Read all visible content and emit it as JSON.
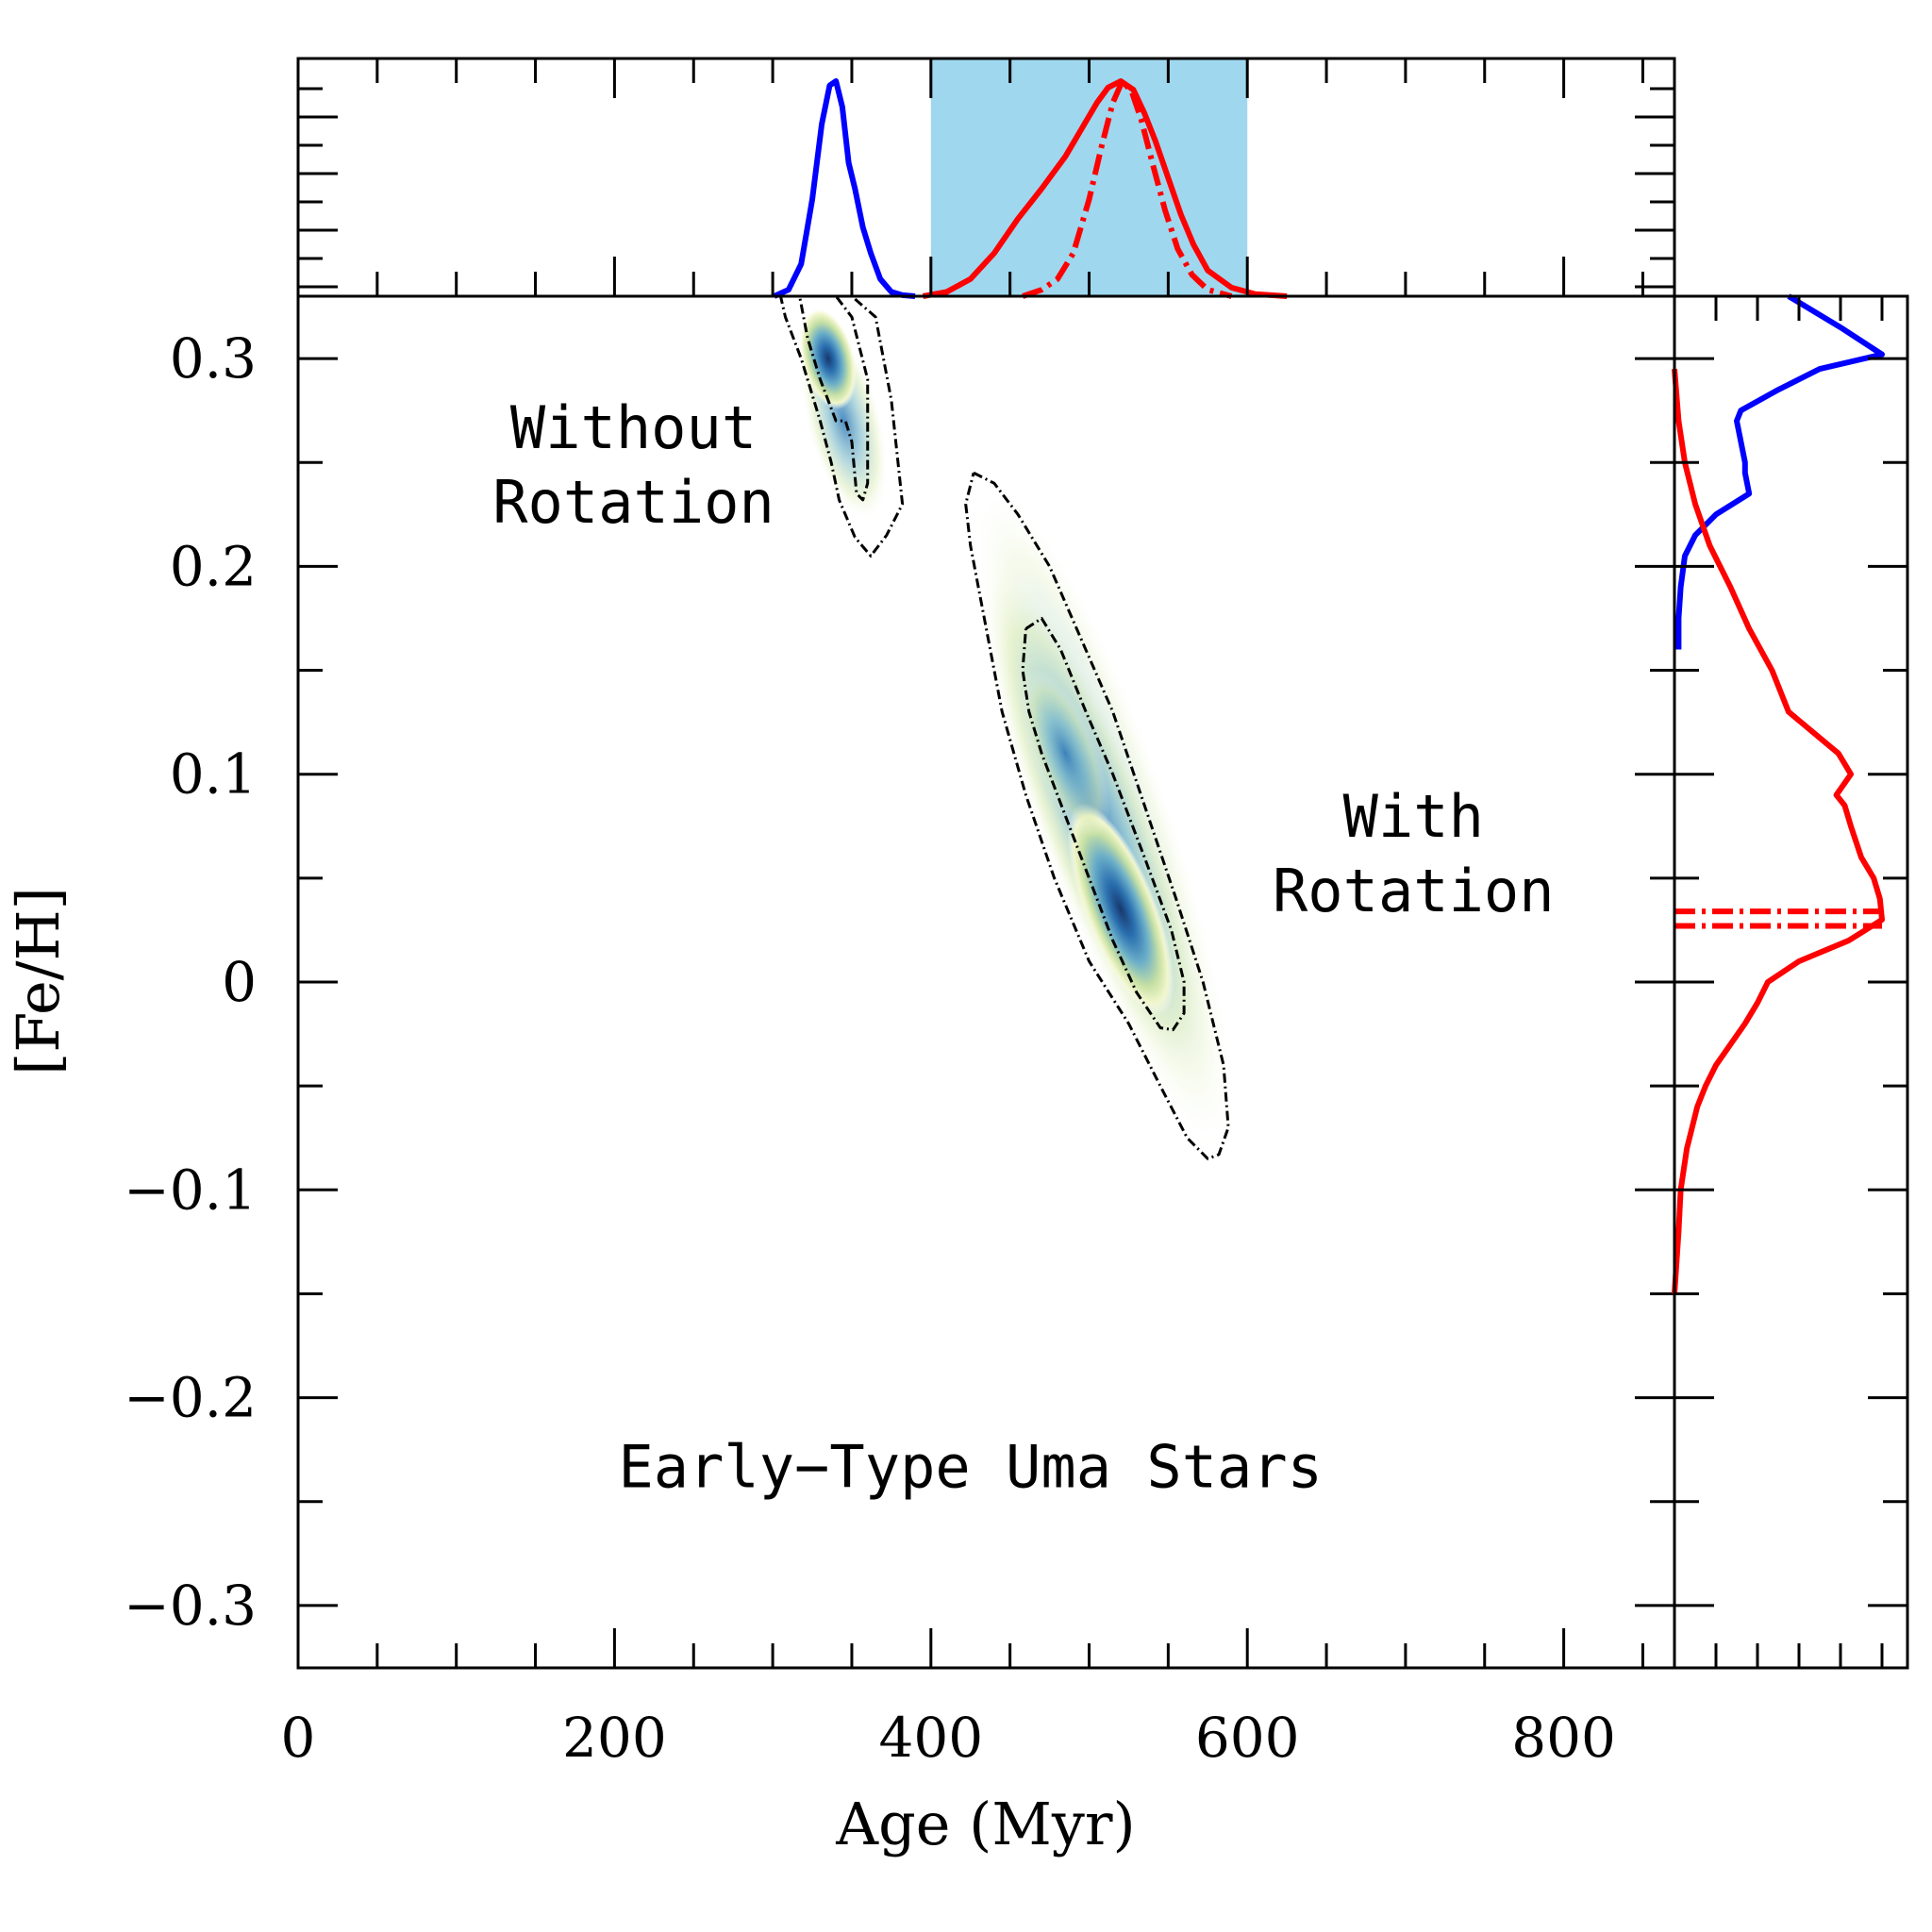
{
  "chart_data": {
    "type": "heatmap",
    "title": "",
    "xlabel": "Age (Myr)",
    "ylabel": "[Fe/H]",
    "xlim": [
      0,
      870
    ],
    "ylim": [
      -0.33,
      0.33
    ],
    "x_ticks": [
      0,
      200,
      400,
      600,
      800
    ],
    "x_tick_labels": [
      "0",
      "200",
      "400",
      "600",
      "800"
    ],
    "y_ticks": [
      0.3,
      0.2,
      0.1,
      0,
      -0.1,
      -0.2,
      -0.3
    ],
    "y_tick_labels": [
      "0.3",
      "0.2",
      "0.1",
      "0",
      "−0.1",
      "−0.2",
      "−0.3"
    ],
    "grid": false,
    "annotations": [
      {
        "text": "Without",
        "x": 212,
        "y": 0.257
      },
      {
        "text": "Rotation",
        "x": 212,
        "y": 0.221
      },
      {
        "text": "With",
        "x": 705,
        "y": 0.07
      },
      {
        "text": "Rotation",
        "x": 705,
        "y": 0.034
      },
      {
        "text": "Early−Type Uma Stars",
        "x": 425,
        "y": -0.243
      }
    ],
    "age_highlight_range": [
      400,
      600
    ],
    "highlight_color": "#9fd7ef",
    "colors": {
      "without_rotation": "#0000ff",
      "with_rotation": "#ff0000",
      "contour": "#000000"
    },
    "density_peaks": [
      {
        "name": "without rotation",
        "age": 335,
        "feh": 0.3
      },
      {
        "name": "with rotation",
        "age": 520,
        "feh": 0.035
      }
    ],
    "series": [
      {
        "panel": "age_marginal",
        "line": "solid",
        "color": "#0000ff",
        "x": [
          301,
          310,
          318,
          325,
          331,
          336,
          340,
          344,
          348,
          352,
          357,
          362,
          368,
          375,
          382,
          390
        ],
        "values": [
          0.0,
          0.03,
          0.15,
          0.45,
          0.8,
          0.98,
          1.0,
          0.88,
          0.62,
          0.5,
          0.32,
          0.2,
          0.08,
          0.02,
          0.005,
          0.0
        ]
      },
      {
        "panel": "age_marginal",
        "line": "solid",
        "color": "#ff0000",
        "x": [
          395,
          410,
          425,
          440,
          455,
          470,
          485,
          497,
          505,
          512,
          520,
          528,
          535,
          542,
          550,
          558,
          566,
          575,
          590,
          605,
          625
        ],
        "values": [
          0.0,
          0.02,
          0.08,
          0.2,
          0.36,
          0.5,
          0.65,
          0.8,
          0.9,
          0.97,
          1.0,
          0.96,
          0.85,
          0.72,
          0.55,
          0.38,
          0.24,
          0.12,
          0.04,
          0.01,
          0.0
        ]
      },
      {
        "panel": "age_marginal",
        "line": "dashdot",
        "color": "#ff0000",
        "x": [
          458,
          470,
          480,
          490,
          500,
          508,
          515,
          521,
          527,
          533,
          540,
          548,
          556,
          565,
          575,
          590
        ],
        "values": [
          0.0,
          0.03,
          0.08,
          0.2,
          0.45,
          0.7,
          0.9,
          1.0,
          0.95,
          0.82,
          0.62,
          0.4,
          0.22,
          0.1,
          0.03,
          0.0
        ]
      },
      {
        "panel": "feh_marginal",
        "line": "solid",
        "color": "#0000ff",
        "y": [
          0.33,
          0.315,
          0.302,
          0.295,
          0.285,
          0.275,
          0.27,
          0.26,
          0.25,
          0.245,
          0.235,
          0.225,
          0.215,
          0.205,
          0.19,
          0.175,
          0.16
        ],
        "values": [
          0.55,
          0.8,
          1.0,
          0.7,
          0.5,
          0.32,
          0.3,
          0.32,
          0.34,
          0.34,
          0.36,
          0.2,
          0.1,
          0.05,
          0.03,
          0.02,
          0.02
        ]
      },
      {
        "panel": "feh_marginal",
        "line": "solid",
        "color": "#ff0000",
        "y": [
          0.295,
          0.27,
          0.25,
          0.23,
          0.21,
          0.19,
          0.17,
          0.15,
          0.13,
          0.11,
          0.1,
          0.09,
          0.085,
          0.075,
          0.06,
          0.05,
          0.04,
          0.03,
          0.02,
          0.01,
          0.0,
          -0.01,
          -0.02,
          -0.03,
          -0.04,
          -0.05,
          -0.06,
          -0.08,
          -0.1,
          -0.12,
          -0.15
        ],
        "values": [
          0.0,
          0.02,
          0.05,
          0.1,
          0.17,
          0.27,
          0.36,
          0.47,
          0.55,
          0.79,
          0.85,
          0.78,
          0.82,
          0.85,
          0.9,
          0.96,
          0.99,
          1.0,
          0.84,
          0.6,
          0.45,
          0.4,
          0.34,
          0.27,
          0.2,
          0.15,
          0.11,
          0.06,
          0.03,
          0.02,
          0.0
        ]
      },
      {
        "panel": "feh_marginal",
        "line": "dashdot",
        "color": "#ff0000",
        "y": [
          0.027,
          0.027
        ],
        "values": [
          0.0,
          1.0
        ]
      },
      {
        "panel": "feh_marginal",
        "line": "dashdot",
        "color": "#ff0000",
        "y": [
          0.034,
          0.034
        ],
        "values": [
          0.0,
          1.0
        ]
      },
      {
        "panel": "main",
        "line": "dashdot",
        "color": "#000000",
        "name": "",
        "x": [
          305,
          315,
          325,
          340,
          350,
          365,
          375,
          382,
          372,
          362,
          352,
          342,
          337,
          330,
          318,
          308,
          305
        ],
        "y": [
          0.33,
          0.33,
          0.33,
          0.33,
          0.33,
          0.32,
          0.28,
          0.23,
          0.215,
          0.205,
          0.214,
          0.232,
          0.25,
          0.27,
          0.3,
          0.32,
          0.33
        ]
      },
      {
        "panel": "main",
        "line": "dashdot",
        "color": "#000000",
        "name": "",
        "x": [
          317,
          325,
          340,
          350,
          360,
          360,
          357,
          353,
          350,
          346,
          340,
          330,
          322,
          317
        ],
        "y": [
          0.33,
          0.33,
          0.33,
          0.32,
          0.29,
          0.24,
          0.232,
          0.235,
          0.26,
          0.27,
          0.27,
          0.29,
          0.31,
          0.33
        ]
      },
      {
        "panel": "main",
        "line": "dashdot",
        "color": "#000000",
        "name": "",
        "x": [
          427,
          440,
          455,
          475,
          495,
          515,
          535,
          555,
          572,
          585,
          588,
          582,
          575,
          562,
          545,
          525,
          500,
          478,
          460,
          445,
          435,
          425,
          422,
          427
        ],
        "y": [
          0.245,
          0.24,
          0.225,
          0.2,
          0.165,
          0.13,
          0.085,
          0.04,
          0.0,
          -0.04,
          -0.07,
          -0.083,
          -0.085,
          -0.075,
          -0.05,
          -0.02,
          0.01,
          0.05,
          0.09,
          0.13,
          0.17,
          0.21,
          0.23,
          0.245
        ]
      },
      {
        "panel": "main",
        "line": "dashdot",
        "color": "#000000",
        "name": "",
        "x": [
          460,
          470,
          482,
          498,
          515,
          535,
          552,
          560,
          560,
          553,
          545,
          530,
          515,
          500,
          485,
          470,
          462,
          458,
          460
        ],
        "y": [
          0.17,
          0.175,
          0.16,
          0.13,
          0.1,
          0.06,
          0.025,
          0.0,
          -0.015,
          -0.023,
          -0.022,
          -0.005,
          0.02,
          0.05,
          0.08,
          0.11,
          0.13,
          0.15,
          0.17
        ]
      }
    ]
  }
}
